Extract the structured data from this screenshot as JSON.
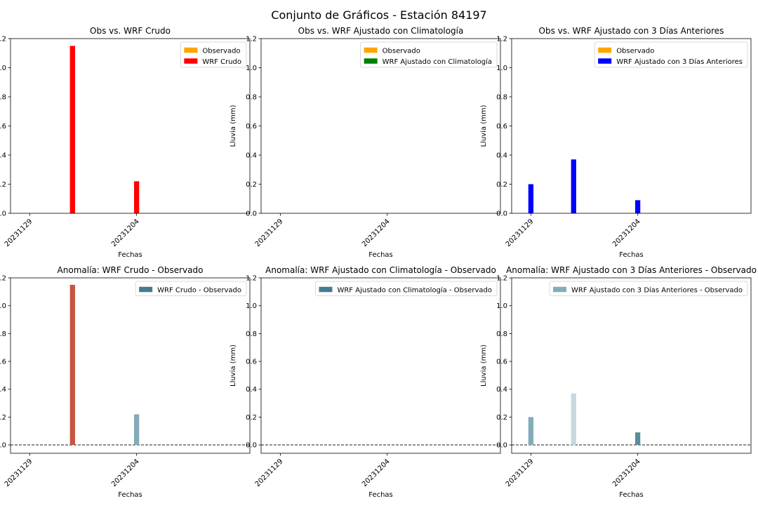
{
  "figure": {
    "title": "Conjunto de Gráficos - Estación 84197"
  },
  "chart_data": [
    {
      "type": "bar",
      "title": "Obs vs. WRF Crudo",
      "xlabel": "Fechas",
      "ylabel": "Lluvia (mm)",
      "xticks": [
        "20231129",
        "20231204"
      ],
      "yticks": [
        "0.0",
        "0.2",
        "0.4",
        "0.6",
        "0.8",
        "1.0",
        "1.2"
      ],
      "ylim": [
        0,
        1.2
      ],
      "legend": {
        "position": "top-right"
      },
      "series": [
        {
          "name": "Observado",
          "color": "#FFA500",
          "points": [
            {
              "x": "20231130",
              "y": 0
            },
            {
              "x": "20231201",
              "y": 0
            },
            {
              "x": "20231204",
              "y": 0
            },
            {
              "x": "20231205",
              "y": 0
            }
          ]
        },
        {
          "name": "WRF Crudo",
          "color": "#FF0000",
          "points": [
            {
              "x": "20231201",
              "y": 1.15
            },
            {
              "x": "20231204",
              "y": 0.22
            }
          ]
        }
      ]
    },
    {
      "type": "bar",
      "title": "Obs vs. WRF Ajustado con Climatología",
      "xlabel": "Fechas",
      "ylabel": "Lluvia (mm)",
      "xticks": [
        "20231129",
        "20231204"
      ],
      "yticks": [
        "0.0",
        "0.2",
        "0.4",
        "0.6",
        "0.8",
        "1.0",
        "1.2"
      ],
      "ylim": [
        0,
        1.2
      ],
      "legend": {
        "position": "top-right"
      },
      "series": [
        {
          "name": "Observado",
          "color": "#FFA500",
          "points": []
        },
        {
          "name": "WRF Ajustado con Climatología",
          "color": "#008000",
          "points": []
        }
      ]
    },
    {
      "type": "bar",
      "title": "Obs vs. WRF Ajustado con 3 Días Anteriores",
      "xlabel": "Fechas",
      "ylabel": "Lluvia (mm)",
      "xticks": [
        "20231129",
        "20231204"
      ],
      "yticks": [
        "0.0",
        "0.2",
        "0.4",
        "0.6",
        "0.8",
        "1.0",
        "1.2"
      ],
      "ylim": [
        0,
        1.2
      ],
      "legend": {
        "position": "top-right"
      },
      "series": [
        {
          "name": "Observado",
          "color": "#FFA500",
          "points": []
        },
        {
          "name": "WRF Ajustado con 3 Días Anteriores",
          "color": "#0000FF",
          "points": [
            {
              "x": "20231129",
              "y": 0.2
            },
            {
              "x": "20231201",
              "y": 0.37
            },
            {
              "x": "20231204",
              "y": 0.09
            }
          ]
        }
      ]
    },
    {
      "type": "bar",
      "title": "Anomalía: WRF Crudo - Observado",
      "xlabel": "Fechas",
      "ylabel": "Lluvia (mm)",
      "xticks": [
        "20231129",
        "20231204"
      ],
      "yticks": [
        "0.0",
        "0.2",
        "0.4",
        "0.6",
        "0.8",
        "1.0",
        "1.2"
      ],
      "ylim": [
        -0.06,
        1.2
      ],
      "zero_line": true,
      "legend": {
        "position": "top-right"
      },
      "series": [
        {
          "name": "WRF Crudo - Observado",
          "color": "#457B8D",
          "points": [
            {
              "x": "20231201",
              "y": 1.15,
              "color": "#C8553D"
            },
            {
              "x": "20231204",
              "y": 0.22,
              "color": "#84ACB8"
            }
          ]
        }
      ]
    },
    {
      "type": "bar",
      "title": "Anomalía: WRF Ajustado con Climatología - Observado",
      "xlabel": "Fechas",
      "ylabel": "Lluvia (mm)",
      "xticks": [
        "20231129",
        "20231204"
      ],
      "yticks": [
        "0.0",
        "0.2",
        "0.4",
        "0.6",
        "0.8",
        "1.0",
        "1.2"
      ],
      "ylim": [
        -0.06,
        1.2
      ],
      "zero_line": true,
      "legend": {
        "position": "top-right"
      },
      "series": [
        {
          "name": "WRF Ajustado con Climatología - Observado",
          "color": "#457B8D",
          "points": []
        }
      ]
    },
    {
      "type": "bar",
      "title": "Anomalía: WRF Ajustado con 3 Días Anteriores - Observado",
      "xlabel": "Fechas",
      "ylabel": "Lluvia (mm)",
      "xticks": [
        "20231129",
        "20231204"
      ],
      "yticks": [
        "0.0",
        "0.2",
        "0.4",
        "0.6",
        "0.8",
        "1.0",
        "1.2"
      ],
      "ylim": [
        -0.06,
        1.2
      ],
      "zero_line": true,
      "legend": {
        "position": "top-right"
      },
      "series": [
        {
          "name": "WRF Ajustado con 3 Días Anteriores - Observado",
          "color": "#84ACB8",
          "points": [
            {
              "x": "20231129",
              "y": 0.2,
              "color": "#84ACB8"
            },
            {
              "x": "20231201",
              "y": 0.37,
              "color": "#C7D9DE"
            },
            {
              "x": "20231204",
              "y": 0.09,
              "color": "#5A8D9C"
            }
          ]
        }
      ]
    }
  ]
}
